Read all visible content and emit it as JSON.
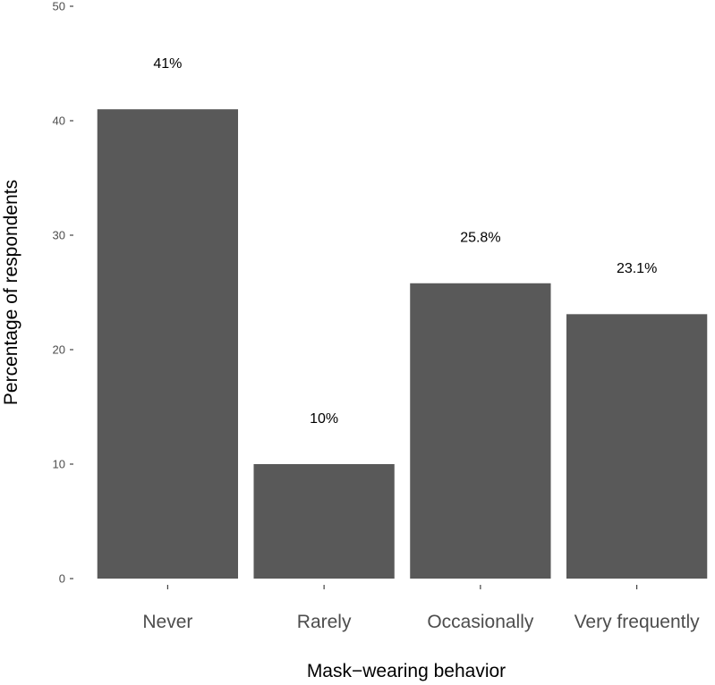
{
  "chart_data": {
    "type": "bar",
    "title": "",
    "xlabel": "Mask−wearing behavior",
    "ylabel": "Percentage of respondents",
    "categories": [
      "Never",
      "Rarely",
      "Occasionally",
      "Very frequently"
    ],
    "values": [
      41,
      10,
      25.8,
      23.1
    ],
    "data_labels": [
      "41%",
      "10%",
      "25.8%",
      "23.1%"
    ],
    "ylim": [
      0,
      50
    ],
    "yticks": [
      0,
      10,
      20,
      30,
      40,
      50
    ],
    "grid": false,
    "legend": "none",
    "colors": {
      "bar": "#595959",
      "axis_text": "#4d4d4d",
      "tick": "#333333"
    }
  }
}
